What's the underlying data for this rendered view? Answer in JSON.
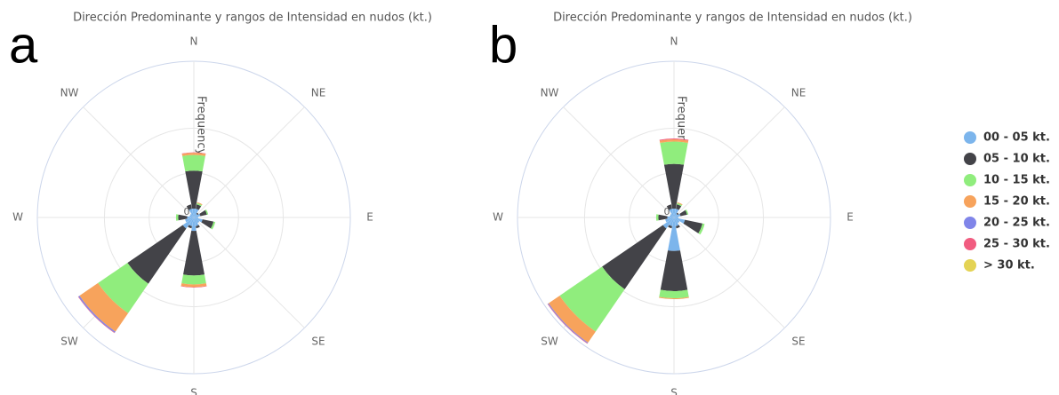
{
  "chart_data": [
    {
      "type": "windrose",
      "panel": "a",
      "title": "Dirección Predominante y rangos de Intensidad en nudos (kt.)",
      "y_label": "Frequency",
      "categories": [
        "N",
        null,
        "NE",
        null,
        "E",
        null,
        "SE",
        null,
        "S",
        null,
        "SW",
        null,
        "W",
        null,
        "NW",
        null
      ],
      "ylim": [
        0,
        35
      ],
      "yticks": [
        0,
        10,
        20
      ],
      "series": [
        {
          "name": "00 - 05 kt.",
          "color": "#7cb5ec",
          "values": [
            2,
            2,
            1,
            1.5,
            1,
            2,
            1.5,
            2,
            3,
            2,
            3,
            2,
            1.5,
            1,
            1,
            2
          ]
        },
        {
          "name": "05 - 10 kt.",
          "color": "#434348",
          "values": [
            8.5,
            1,
            0.3,
            1.5,
            0,
            2.5,
            0,
            0.5,
            10,
            0.5,
            15,
            0,
            2,
            0,
            0,
            1
          ]
        },
        {
          "name": "10 - 15 kt.",
          "color": "#90ed7d",
          "values": [
            3.5,
            0.3,
            0,
            0.3,
            0,
            0.4,
            0,
            0,
            2,
            0,
            8,
            0,
            0.5,
            0,
            0,
            0
          ]
        },
        {
          "name": "15 - 20 kt.",
          "color": "#f7a35c",
          "values": [
            0.5,
            0.2,
            0,
            0,
            0,
            0,
            0,
            0,
            0.6,
            0,
            5,
            0,
            0,
            0,
            0,
            0
          ]
        },
        {
          "name": "20 - 25 kt.",
          "color": "#8085e9",
          "values": [
            0,
            0,
            0,
            0,
            0,
            0,
            0,
            0,
            0,
            0,
            0.3,
            0,
            0,
            0,
            0,
            0
          ]
        },
        {
          "name": "25 - 30 kt.",
          "color": "#f15c80",
          "values": [
            0.1,
            0,
            0,
            0,
            0,
            0,
            0,
            0,
            0.1,
            0,
            0.1,
            0,
            0,
            0,
            0,
            0
          ]
        },
        {
          "name": "> 30 kt.",
          "color": "#e4d354",
          "values": [
            0,
            0,
            0,
            0,
            0,
            0,
            0,
            0,
            0,
            0,
            0,
            0,
            0,
            0,
            0,
            0
          ]
        }
      ]
    },
    {
      "type": "windrose",
      "panel": "b",
      "title": "Dirección Predominante y rangos de Intensidad en nudos (kt.)",
      "y_label": "Frequency",
      "categories": [
        "N",
        null,
        "NE",
        null,
        "E",
        null,
        "SE",
        null,
        "S",
        null,
        "SW",
        null,
        "W",
        null,
        "NW",
        null
      ],
      "ylim": [
        0,
        35
      ],
      "yticks": [
        0,
        10,
        20
      ],
      "series": [
        {
          "color": "#7cb5ec",
          "values": [
            2,
            2,
            1,
            1.5,
            1,
            2.5,
            1.5,
            2,
            7.5,
            2,
            3,
            2,
            1.5,
            1,
            1,
            2
          ]
        },
        {
          "color": "#434348",
          "values": [
            10,
            1,
            0.3,
            1.5,
            0,
            4,
            0,
            0.5,
            9,
            0.5,
            16.5,
            0,
            2,
            0,
            0,
            1
          ]
        },
        {
          "color": "#90ed7d",
          "values": [
            5,
            0.3,
            0,
            0.3,
            0,
            0.5,
            0,
            0,
            1.6,
            0,
            11.5,
            0,
            0.5,
            0,
            0,
            0
          ]
        },
        {
          "color": "#f7a35c",
          "values": [
            0.5,
            0.2,
            0,
            0,
            0,
            0,
            0,
            0,
            0.2,
            0,
            3,
            0,
            0,
            0,
            0,
            0
          ]
        },
        {
          "color": "#8085e9",
          "values": [
            0,
            0,
            0,
            0,
            0,
            0,
            0,
            0,
            0,
            0,
            0.2,
            0,
            0,
            0,
            0,
            0
          ]
        },
        {
          "color": "#f15c80",
          "values": [
            0.2,
            0,
            0,
            0,
            0,
            0,
            0,
            0,
            0,
            0,
            0.1,
            0,
            0,
            0,
            0,
            0
          ]
        },
        {
          "color": "#e4d354",
          "values": [
            0,
            0,
            0,
            0,
            0,
            0,
            0,
            0,
            0,
            0,
            0,
            0,
            0,
            0,
            0,
            0
          ]
        }
      ]
    }
  ]
}
